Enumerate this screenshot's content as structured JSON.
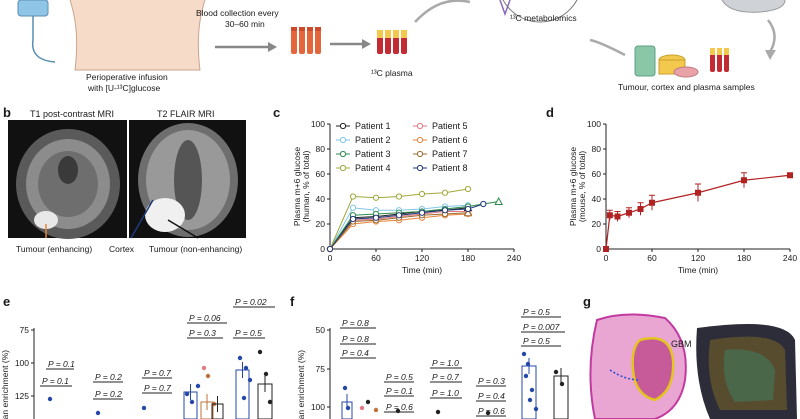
{
  "panel_labels": {
    "b": "b",
    "c": "c",
    "d": "d",
    "e": "e",
    "f": "f",
    "g": "g"
  },
  "schematic": {
    "infusion": "Perioperative infusion",
    "infusion_with": "with [U-¹³C]glucose",
    "blood_collection": "Blood collection every",
    "blood_interval": "30–60 min",
    "plasma": "¹³C plasma",
    "metabolomics": "¹³C metabolomics",
    "samples": "Tumour, cortex and plasma samples"
  },
  "mri": {
    "left_title": "T1 post-contrast MRI",
    "right_title": "T2 FLAIR MRI",
    "tumour_enhancing": "Tumour (enhancing)",
    "cortex": "Cortex",
    "tumour_non_enhancing": "Tumour (non-enhancing)"
  },
  "colors": {
    "p1": "#222222",
    "p2": "#7fc6e6",
    "p3": "#2d8a4b",
    "p4": "#a3a83a",
    "p5": "#e27a84",
    "p6": "#e8833a",
    "p7": "#9b6b2f",
    "p8": "#1f3a7a",
    "mouse": "#b22222"
  },
  "chart_data": [
    {
      "type": "line",
      "panel": "c",
      "xlabel": "Time (min)",
      "ylabel": "Plasma m+6 glucose",
      "ylabel2": "(human, % of total)",
      "xlim": [
        0,
        240
      ],
      "ylim": [
        0,
        100
      ],
      "xticks": [
        0,
        60,
        120,
        180,
        240
      ],
      "yticks": [
        0,
        20,
        40,
        60,
        80,
        100
      ],
      "legend_position": "top-left",
      "series": [
        {
          "name": "Patient 1",
          "color": "#222222",
          "marker": "circle",
          "x": [
            0,
            30,
            60,
            90,
            120,
            150,
            180
          ],
          "y": [
            0,
            25,
            26,
            28,
            30,
            31,
            33
          ]
        },
        {
          "name": "Patient 2",
          "color": "#7fc6e6",
          "marker": "circle",
          "x": [
            0,
            30,
            60,
            90,
            120,
            150,
            180
          ],
          "y": [
            0,
            33,
            31,
            31,
            32,
            34,
            35
          ]
        },
        {
          "name": "Patient 3",
          "color": "#2d8a4b",
          "marker": "circle",
          "x": [
            0,
            30,
            60,
            90,
            120,
            150,
            180,
            220
          ],
          "y": [
            0,
            27,
            28,
            29,
            30,
            32,
            34,
            38
          ]
        },
        {
          "name": "Patient 4",
          "color": "#a3a83a",
          "marker": "circle",
          "x": [
            0,
            30,
            60,
            90,
            120,
            150,
            180
          ],
          "y": [
            0,
            42,
            41,
            42,
            44,
            45,
            48
          ]
        },
        {
          "name": "Patient 5",
          "color": "#e27a84",
          "marker": "circle",
          "x": [
            0,
            30,
            60,
            90,
            120,
            150,
            180
          ],
          "y": [
            0,
            23,
            24,
            26,
            28,
            30,
            30
          ]
        },
        {
          "name": "Patient 6",
          "color": "#e8833a",
          "marker": "circle",
          "x": [
            0,
            30,
            60,
            90,
            120,
            150,
            180
          ],
          "y": [
            0,
            20,
            22,
            23,
            25,
            27,
            28
          ]
        },
        {
          "name": "Patient 7",
          "color": "#9b6b2f",
          "marker": "circle",
          "x": [
            0,
            30,
            60,
            90,
            120,
            150,
            180
          ],
          "y": [
            0,
            22,
            23,
            25,
            27,
            28,
            29
          ]
        },
        {
          "name": "Patient 8",
          "color": "#1f3a7a",
          "marker": "circle",
          "x": [
            0,
            30,
            60,
            90,
            120,
            150,
            180,
            200
          ],
          "y": [
            0,
            24,
            25,
            27,
            29,
            31,
            32,
            36
          ]
        }
      ]
    },
    {
      "type": "line",
      "panel": "d",
      "xlabel": "Time (min)",
      "ylabel": "Plasma m+6 glucose",
      "ylabel2": "(mouse, % of total)",
      "xlim": [
        0,
        240
      ],
      "ylim": [
        0,
        100
      ],
      "xticks": [
        0,
        60,
        120,
        180,
        240
      ],
      "yticks": [
        0,
        20,
        40,
        60,
        80,
        100
      ],
      "series": [
        {
          "name": "Mouse",
          "color": "#b22222",
          "marker": "square",
          "x": [
            0,
            5,
            15,
            30,
            45,
            60,
            120,
            180,
            240
          ],
          "y": [
            0,
            27,
            26,
            29,
            32,
            37,
            45,
            55,
            59
          ],
          "err": [
            0,
            4,
            4,
            4,
            5,
            6,
            7,
            6,
            1
          ]
        }
      ]
    },
    {
      "type": "scatter",
      "panel": "e",
      "ylabel": "ean enrichment (%)",
      "yticks": [
        75,
        100,
        125
      ],
      "pvalues": [
        "P = 0.1",
        "P = 0.1",
        "P = 0.2",
        "P = 0.2",
        "P = 0.7",
        "P = 0.7",
        "P = 0.06",
        "P = 0.3",
        "P = 0.5",
        "P = 0.02"
      ]
    },
    {
      "type": "scatter",
      "panel": "f",
      "ylabel": "ean enrichment (%)",
      "yticks": [
        50,
        75,
        100
      ],
      "pvalues": [
        "P = 0.8",
        "P = 0.8",
        "P = 0.4",
        "P = 0.5",
        "P = 0.1",
        "P = 0.6",
        "P = 1.0",
        "P = 0.7",
        "P = 1.0",
        "P = 0.3",
        "P = 0.4",
        "P = 0.6",
        "P = 0.5",
        "P = 0.007",
        "P = 0.5"
      ]
    }
  ],
  "histology": {
    "gbm_label": "GBM"
  }
}
